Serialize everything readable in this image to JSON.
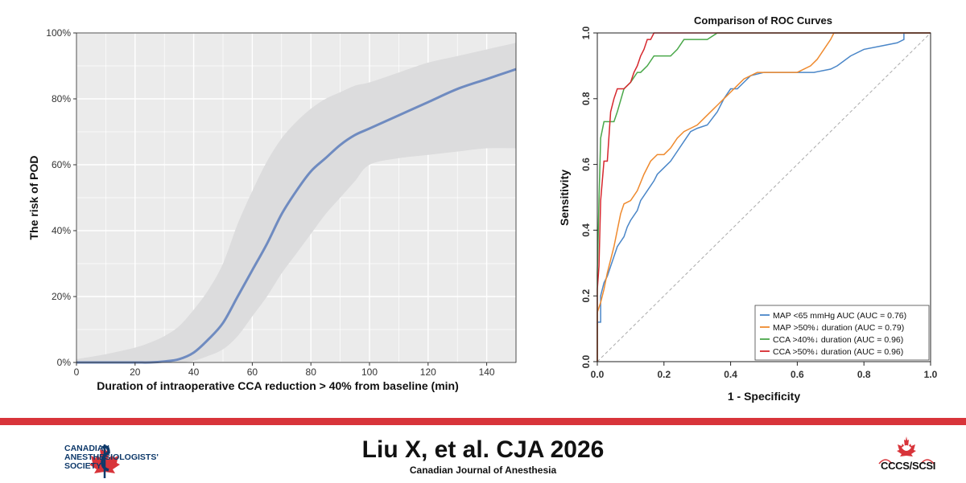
{
  "chart_data": [
    {
      "type": "line",
      "title": "",
      "xlabel": "Duration of intraoperative CCA reduction > 40% from baseline (min)",
      "ylabel": "The risk of POD",
      "xlim": [
        0,
        150
      ],
      "ylim": [
        0,
        100
      ],
      "x_ticks": [
        "0",
        "20",
        "40",
        "60",
        "80",
        "100",
        "120",
        "140"
      ],
      "y_ticks": [
        "0%",
        "20%",
        "40%",
        "60%",
        "80%",
        "100%"
      ],
      "grid": true,
      "series": [
        {
          "name": "",
          "x": [
            0,
            10,
            20,
            25,
            30,
            35,
            40,
            45,
            50,
            55,
            60,
            65,
            70,
            75,
            80,
            85,
            90,
            95,
            100,
            110,
            120,
            130,
            140,
            150
          ],
          "y": [
            0,
            0,
            0,
            0,
            0.3,
            1,
            3,
            7,
            12,
            20,
            28,
            36,
            45,
            52,
            58,
            62,
            66,
            69,
            71,
            75,
            79,
            83,
            86,
            89
          ],
          "ci_lower": [
            0,
            0,
            0,
            0,
            0,
            0,
            0.5,
            2,
            4,
            8,
            14,
            20,
            27,
            33,
            39,
            45,
            50,
            55,
            60,
            62,
            63,
            64,
            65,
            65
          ],
          "ci_upper": [
            1,
            2.5,
            4.5,
            6,
            8,
            11,
            16,
            22,
            30,
            42,
            52,
            61,
            68,
            73,
            77,
            80,
            82,
            84,
            85,
            88,
            91,
            93,
            95,
            97
          ]
        }
      ],
      "colors": {
        "line": "#6f8bc0",
        "band": "#dcdcdd"
      }
    },
    {
      "type": "line",
      "title": "Comparison of ROC Curves",
      "xlabel": "1 - Specificity",
      "ylabel": "Sensitivity",
      "xlim": [
        0,
        1
      ],
      "ylim": [
        0,
        1
      ],
      "x_ticks": [
        "0.0",
        "0.2",
        "0.4",
        "0.6",
        "0.8",
        "1.0"
      ],
      "y_ticks": [
        "0.0",
        "0.2",
        "0.4",
        "0.6",
        "0.8",
        "1.0"
      ],
      "grid": false,
      "diagonal": true,
      "legend_position": "bottom-right",
      "series": [
        {
          "name": "MAP <65 mmHg AUC (AUC = 0.76)",
          "color": "#4a86c8",
          "x": [
            0,
            0,
            0.01,
            0.01,
            0.02,
            0.03,
            0.04,
            0.05,
            0.06,
            0.08,
            0.09,
            0.1,
            0.12,
            0.13,
            0.15,
            0.17,
            0.18,
            0.2,
            0.22,
            0.24,
            0.26,
            0.28,
            0.3,
            0.33,
            0.36,
            0.38,
            0.4,
            0.42,
            0.44,
            0.46,
            0.5,
            0.55,
            0.6,
            0.65,
            0.7,
            0.72,
            0.76,
            0.8,
            0.85,
            0.9,
            0.92,
            0.92,
            0.95,
            1.0
          ],
          "y": [
            0,
            0.12,
            0.12,
            0.2,
            0.24,
            0.26,
            0.29,
            0.32,
            0.35,
            0.38,
            0.41,
            0.43,
            0.46,
            0.49,
            0.52,
            0.55,
            0.57,
            0.59,
            0.61,
            0.64,
            0.67,
            0.7,
            0.71,
            0.72,
            0.76,
            0.8,
            0.83,
            0.83,
            0.85,
            0.87,
            0.88,
            0.88,
            0.88,
            0.88,
            0.89,
            0.9,
            0.93,
            0.95,
            0.96,
            0.97,
            0.98,
            1.0,
            1.0,
            1.0
          ]
        },
        {
          "name": "MAP >50%↓ duration (AUC = 0.79)",
          "color": "#ef8a2e",
          "x": [
            0,
            0,
            0.01,
            0.02,
            0.03,
            0.04,
            0.05,
            0.06,
            0.07,
            0.08,
            0.1,
            0.12,
            0.14,
            0.16,
            0.18,
            0.2,
            0.22,
            0.24,
            0.26,
            0.28,
            0.3,
            0.32,
            0.35,
            0.38,
            0.4,
            0.42,
            0.44,
            0.48,
            0.55,
            0.6,
            0.64,
            0.66,
            0.68,
            0.7,
            0.71,
            1.0
          ],
          "y": [
            0,
            0.15,
            0.18,
            0.22,
            0.27,
            0.31,
            0.35,
            0.4,
            0.45,
            0.48,
            0.49,
            0.52,
            0.57,
            0.61,
            0.63,
            0.63,
            0.65,
            0.68,
            0.7,
            0.71,
            0.72,
            0.74,
            0.77,
            0.8,
            0.82,
            0.84,
            0.86,
            0.88,
            0.88,
            0.88,
            0.9,
            0.92,
            0.95,
            0.98,
            1.0,
            1.0
          ]
        },
        {
          "name": "CCA >40%↓ duration (AUC = 0.96)",
          "color": "#4aa84a",
          "x": [
            0,
            0,
            0.005,
            0.01,
            0.02,
            0.03,
            0.04,
            0.05,
            0.06,
            0.08,
            0.1,
            0.12,
            0.13,
            0.15,
            0.17,
            0.19,
            0.2,
            0.22,
            0.24,
            0.26,
            0.28,
            0.3,
            0.33,
            0.36,
            1.0
          ],
          "y": [
            0,
            0.27,
            0.49,
            0.68,
            0.73,
            0.73,
            0.73,
            0.73,
            0.76,
            0.83,
            0.85,
            0.88,
            0.88,
            0.9,
            0.93,
            0.93,
            0.93,
            0.93,
            0.95,
            0.98,
            0.98,
            0.98,
            0.98,
            1.0,
            1.0
          ]
        },
        {
          "name": "CCA >50%↓ duration (AUC = 0.96)",
          "color": "#d6282e",
          "x": [
            0,
            0,
            0.005,
            0.01,
            0.02,
            0.03,
            0.04,
            0.05,
            0.06,
            0.08,
            0.1,
            0.11,
            0.12,
            0.13,
            0.14,
            0.15,
            0.16,
            0.17,
            1.0
          ],
          "y": [
            0,
            0.22,
            0.29,
            0.49,
            0.61,
            0.61,
            0.76,
            0.8,
            0.83,
            0.83,
            0.85,
            0.88,
            0.9,
            0.93,
            0.95,
            0.98,
            0.98,
            1.0,
            1.0
          ]
        }
      ]
    }
  ],
  "footer": {
    "society_name": [
      "CANADIAN",
      "ANESTHESIOLOGISTS'",
      "SOCIETY"
    ],
    "citation": "Liu X, et al. CJA 2026",
    "journal": "Canadian Journal of Anesthesia",
    "partner_logo_text": "CCCS/SCSI",
    "colors": {
      "red_bar": "#d8343a",
      "society_blue": "#0f3a6b"
    }
  }
}
